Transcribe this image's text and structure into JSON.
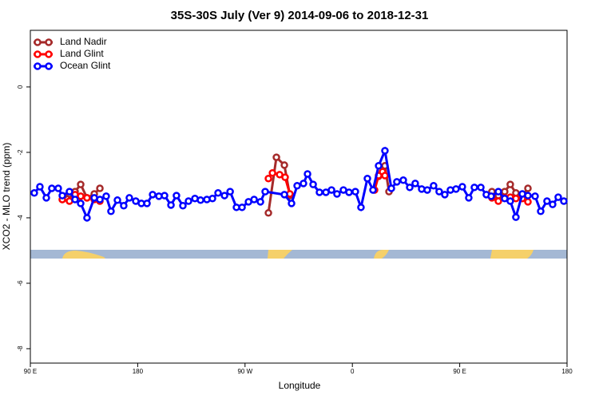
{
  "chart_data": {
    "type": "line",
    "title": "35S-30S July (Ver 9)   2014-09-06 to 2018-12-31",
    "x_label": "Longitude",
    "y_label": "XCO2 - MLO trend (ppm)",
    "xlim": [
      90,
      540
    ],
    "ylim": [
      -8.44,
      1.73
    ],
    "xticks": [
      {
        "value": 90,
        "label": "90 E"
      },
      180,
      {
        "value": 270,
        "label": "90 W"
      },
      {
        "value": 360,
        "label": "0"
      },
      {
        "value": 450,
        "label": "90 E"
      },
      {
        "value": 540,
        "label": "180"
      }
    ],
    "yticks": [
      0,
      -2,
      -4,
      -6,
      -8
    ],
    "legend": "top-left",
    "series": [
      {
        "name": "Land Nadir",
        "color": "#a52a2a",
        "x": [
          116.8,
          122.8,
          127.5,
          132.2,
          137.5,
          143.6,
          148.3,
          220,
          289.6,
          296.3,
          303.0,
          307.6,
          345,
          382.0,
          387.3,
          390.7,
          430,
          477.0,
          482.4,
          487.7,
          492.4,
          497.1,
          502.5,
          507.2
        ],
        "values": [
          -3.44,
          -3.27,
          -3.2,
          -2.98,
          -3.39,
          -3.27,
          -3.1,
          null,
          -3.85,
          -2.15,
          -2.39,
          -3.32,
          null,
          -2.73,
          -2.41,
          -3.2,
          null,
          -3.2,
          -3.32,
          -3.2,
          -2.98,
          -3.24,
          -3.34,
          -3.1
        ]
      },
      {
        "name": "Land Glint",
        "color": "#ff0000",
        "x": [
          116.8,
          122.8,
          127.5,
          132.2,
          137.5,
          143.6,
          148.3,
          220,
          289.6,
          293.0,
          299.0,
          303.6,
          307.6,
          345,
          378.6,
          382.0,
          385.3,
          387.3,
          430,
          477.0,
          482.4,
          487.7,
          492.4,
          497.1,
          502.5,
          507.2
        ],
        "values": [
          -3.44,
          -3.49,
          -3.29,
          -3.34,
          -3.39,
          -3.44,
          -3.49,
          null,
          -2.8,
          -2.63,
          -2.68,
          -2.76,
          -3.27,
          null,
          -3.15,
          -2.71,
          -2.59,
          -2.71,
          null,
          -3.39,
          -3.49,
          -3.39,
          -3.37,
          -3.41,
          -3.41,
          -3.51
        ]
      },
      {
        "name": "Ocean Glint",
        "color": "#0000ff",
        "x": [
          93.3,
          98.0,
          103.4,
          108.0,
          113.4,
          116.8,
          122.8,
          127.5,
          132.2,
          137.5,
          143.6,
          148.3,
          153.6,
          157.6,
          163.0,
          168.3,
          173.0,
          178.4,
          183.1,
          187.8,
          192.5,
          197.8,
          202.5,
          207.9,
          212.5,
          217.9,
          222.6,
          228.0,
          232.7,
          238.0,
          242.7,
          247.4,
          252.8,
          257.5,
          262.8,
          267.5,
          272.9,
          277.6,
          282.9,
          286.9,
          303.0,
          309.0,
          313.7,
          319.0,
          322.4,
          327.1,
          332.4,
          337.8,
          342.5,
          347.1,
          352.5,
          357.2,
          362.5,
          367.2,
          372.6,
          377.3,
          382.0,
          387.3,
          392.7,
          397.3,
          402.7,
          408.1,
          412.7,
          418.1,
          422.8,
          428.1,
          432.8,
          437.5,
          442.2,
          446.9,
          452.2,
          457.6,
          462.3,
          467.7,
          472.3,
          476.4,
          482.4,
          487.7,
          492.4,
          497.1,
          502.5,
          507.2,
          513.2,
          517.9,
          523.2,
          527.9,
          532.6,
          537.3
        ],
        "values": [
          -3.24,
          -3.05,
          -3.39,
          -3.1,
          -3.1,
          -3.32,
          -3.2,
          -3.44,
          -3.56,
          -4.0,
          -3.39,
          -3.44,
          -3.34,
          -3.8,
          -3.46,
          -3.63,
          -3.39,
          -3.49,
          -3.56,
          -3.56,
          -3.29,
          -3.34,
          -3.32,
          -3.61,
          -3.32,
          -3.63,
          -3.49,
          -3.41,
          -3.46,
          -3.44,
          -3.41,
          -3.24,
          -3.32,
          -3.2,
          -3.68,
          -3.68,
          -3.51,
          -3.44,
          -3.51,
          -3.2,
          -3.29,
          -3.56,
          -3.02,
          -2.95,
          -2.66,
          -2.98,
          -3.22,
          -3.22,
          -3.15,
          -3.27,
          -3.15,
          -3.22,
          -3.2,
          -3.68,
          -2.8,
          -3.15,
          -2.41,
          -1.95,
          -3.1,
          -2.9,
          -2.85,
          -3.07,
          -2.95,
          -3.12,
          -3.15,
          -3.02,
          -3.2,
          -3.29,
          -3.15,
          -3.12,
          -3.05,
          -3.39,
          -3.07,
          -3.07,
          -3.29,
          -3.34,
          -3.2,
          -3.41,
          -3.49,
          -3.98,
          -3.27,
          -3.32,
          -3.34,
          -3.8,
          -3.49,
          -3.59,
          -3.37,
          -3.49
        ]
      }
    ]
  }
}
